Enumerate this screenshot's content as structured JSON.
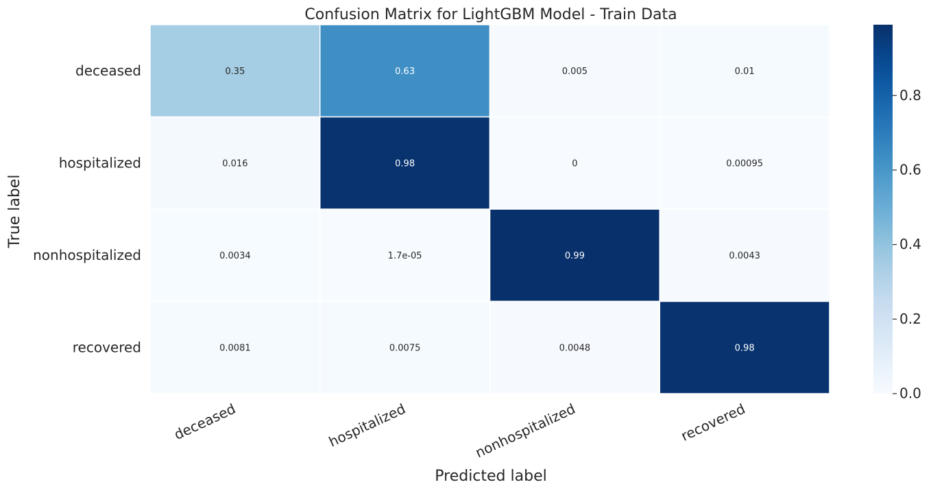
{
  "chart_data": {
    "type": "heatmap",
    "title": "Confusion Matrix for LightGBM Model - Train Data",
    "xlabel": "Predicted label",
    "ylabel": "True label",
    "x_categories": [
      "deceased",
      "hospitalized",
      "nonhospitalized",
      "recovered"
    ],
    "y_categories": [
      "deceased",
      "hospitalized",
      "nonhospitalized",
      "recovered"
    ],
    "values": [
      [
        0.35,
        0.63,
        0.005,
        0.01
      ],
      [
        0.016,
        0.98,
        0,
        0.00095
      ],
      [
        0.0034,
        1.7e-05,
        0.99,
        0.0043
      ],
      [
        0.0081,
        0.0075,
        0.0048,
        0.98
      ]
    ],
    "cell_labels": [
      [
        "0.35",
        "0.63",
        "0.005",
        "0.01"
      ],
      [
        "0.016",
        "0.98",
        "0",
        "0.00095"
      ],
      [
        "0.0034",
        "1.7e-05",
        "0.99",
        "0.0043"
      ],
      [
        "0.0081",
        "0.0075",
        "0.0048",
        "0.98"
      ]
    ],
    "colormap": "Blues",
    "color_range": [
      0,
      0.99
    ],
    "colorbar_ticks": [
      0.0,
      0.2,
      0.4,
      0.6,
      0.8
    ],
    "colorbar_tick_labels": [
      "0.0",
      "0.2",
      "0.4",
      "0.6",
      "0.8"
    ],
    "grid": false
  }
}
